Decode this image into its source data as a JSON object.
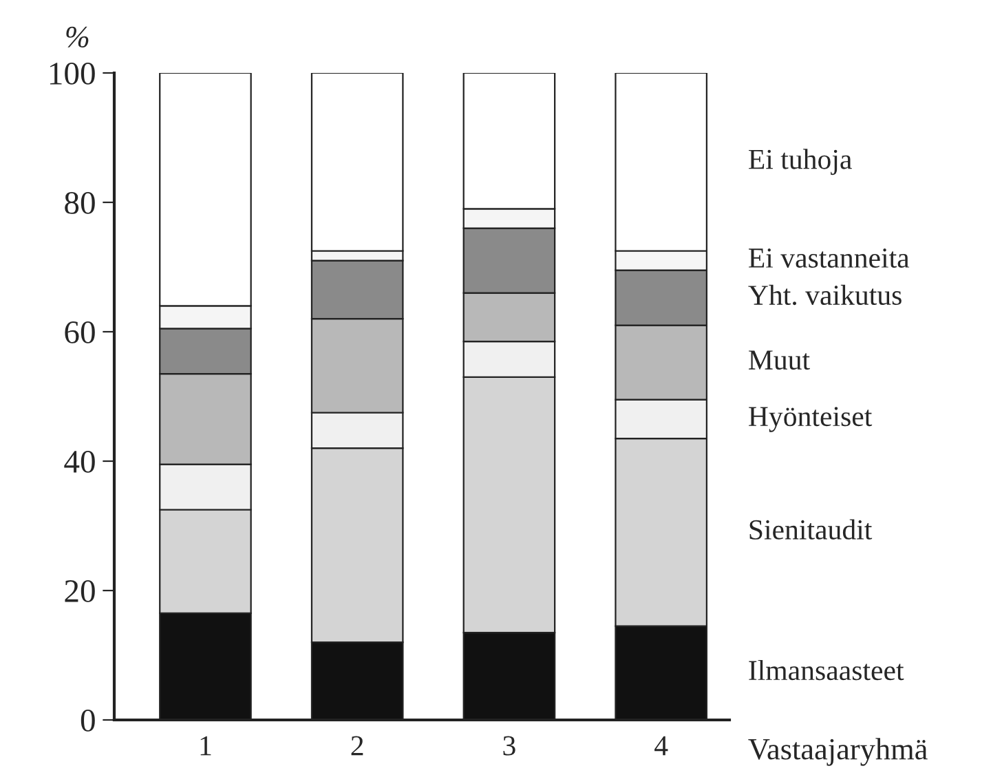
{
  "chart_data": {
    "type": "bar",
    "stacked": true,
    "ylabel": "%",
    "xlabel": "Vastaajaryhmä",
    "categories": [
      "1",
      "2",
      "3",
      "4"
    ],
    "series": [
      {
        "name": "Ilmansaasteet",
        "color": "#111111",
        "values": [
          16.5,
          12,
          13.5,
          14.5
        ]
      },
      {
        "name": "Sienitaudit",
        "color": "#d4d4d4",
        "values": [
          16,
          30,
          39.5,
          29
        ]
      },
      {
        "name": "Hyönteiset",
        "color": "#f0f0f0",
        "values": [
          7,
          5.5,
          5.5,
          6
        ]
      },
      {
        "name": "Muut",
        "color": "#b8b8b8",
        "values": [
          14,
          14.5,
          7.5,
          11.5
        ]
      },
      {
        "name": "Yht. vaikutus",
        "color": "#8a8a8a",
        "values": [
          7,
          9,
          10,
          8.5
        ]
      },
      {
        "name": "Ei vastanneita",
        "color": "#f5f5f5",
        "values": [
          3.5,
          1.5,
          3,
          3
        ]
      },
      {
        "name": "Ei tuhoja",
        "color": "#ffffff",
        "values": [
          36,
          27.5,
          21,
          27.5
        ]
      }
    ],
    "ylim": [
      0,
      100
    ],
    "yticks": [
      0,
      20,
      40,
      60,
      80,
      100
    ],
    "grid": false,
    "legend": false
  }
}
